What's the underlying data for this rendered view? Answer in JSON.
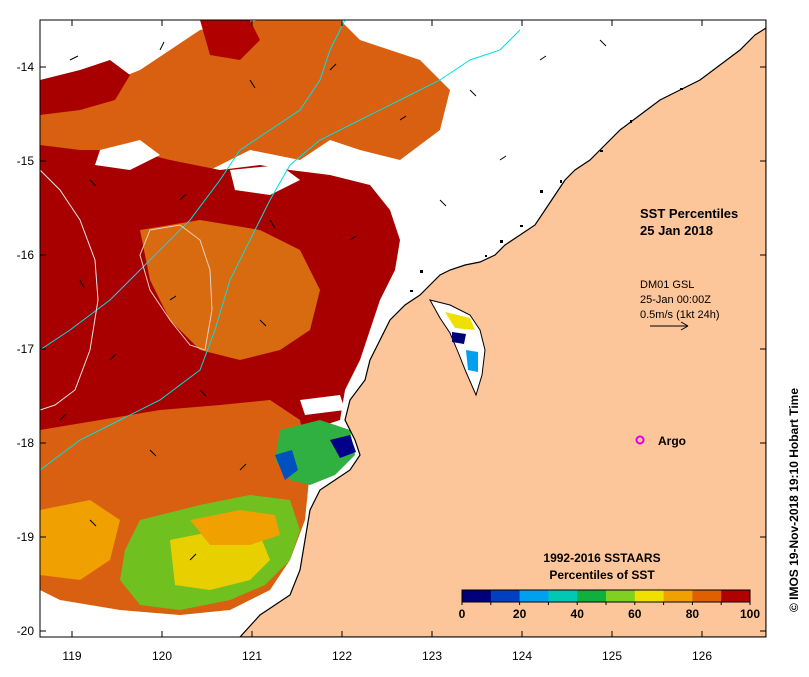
{
  "map": {
    "title_line1": "SST Percentiles",
    "title_line2": "25 Jan 2018",
    "vector_info": {
      "line1": "DM01 GSL",
      "line2": "25-Jan 00:00Z",
      "line3": "0.5m/s (1kt 24h)"
    },
    "argo_label": "Argo",
    "credit": "© IMOS 19-Nov-2018 19:10 Hobart Time",
    "longitude_ticks": [
      "119",
      "120",
      "121",
      "122",
      "123",
      "124",
      "125",
      "126"
    ],
    "latitude_ticks": [
      "-14",
      "-15",
      "-16",
      "-17",
      "-18",
      "-19",
      "-20"
    ],
    "legend": {
      "title_line1": "1992-2016 SSTAARS",
      "title_line2": "Percentiles of SST",
      "tick_labels": [
        "0",
        "20",
        "40",
        "60",
        "80",
        "100"
      ],
      "colors": [
        "#00007a",
        "#0040c0",
        "#00a0f0",
        "#00c8b4",
        "#10b040",
        "#80d020",
        "#f0e000",
        "#f0a000",
        "#e06000",
        "#b00000"
      ]
    },
    "colors": {
      "land": "#fdc59a",
      "cloud": "#ffffff",
      "argo": "#e000e0",
      "contour_cyan": "#00e0e0"
    }
  }
}
